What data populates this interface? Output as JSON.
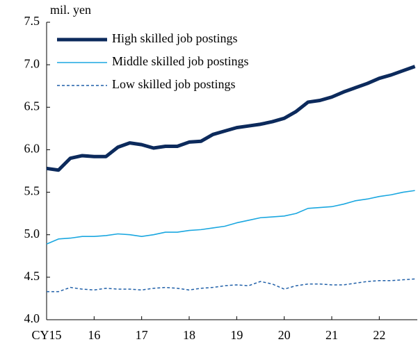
{
  "chart_data": {
    "type": "line",
    "y_label": "mil. yen",
    "legend": "upper left",
    "x": [
      2015,
      2015.25,
      2015.5,
      2015.75,
      2016,
      2016.25,
      2016.5,
      2016.75,
      2017,
      2017.25,
      2017.5,
      2017.75,
      2018,
      2018.25,
      2018.5,
      2018.75,
      2019,
      2019.25,
      2019.5,
      2019.75,
      2020,
      2020.25,
      2020.5,
      2020.75,
      2021,
      2021.25,
      2021.5,
      2021.75,
      2022,
      2022.25,
      2022.5,
      2022.75
    ],
    "series": [
      {
        "name": "High skilled job postings",
        "color": "#0c2a5c",
        "width": 5,
        "dash": "none",
        "values": [
          5.78,
          5.76,
          5.9,
          5.93,
          5.92,
          5.92,
          6.03,
          6.08,
          6.06,
          6.02,
          6.04,
          6.04,
          6.09,
          6.1,
          6.18,
          6.22,
          6.26,
          6.28,
          6.3,
          6.33,
          6.37,
          6.45,
          6.56,
          6.58,
          6.62,
          6.68,
          6.73,
          6.78,
          6.84,
          6.88,
          6.93,
          6.98
        ]
      },
      {
        "name": "Middle skilled job postings",
        "color": "#1aa7e0",
        "width": 1.6,
        "dash": "none",
        "values": [
          4.89,
          4.95,
          4.96,
          4.98,
          4.98,
          4.99,
          5.01,
          5.0,
          4.98,
          5.0,
          5.03,
          5.03,
          5.05,
          5.06,
          5.08,
          5.1,
          5.14,
          5.17,
          5.2,
          5.21,
          5.22,
          5.25,
          5.31,
          5.32,
          5.33,
          5.36,
          5.4,
          5.42,
          5.45,
          5.47,
          5.5,
          5.52
        ]
      },
      {
        "name": "Low skilled job postings",
        "color": "#1f5fa8",
        "width": 1.5,
        "dash": "4 3",
        "values": [
          4.33,
          4.33,
          4.38,
          4.36,
          4.35,
          4.37,
          4.36,
          4.36,
          4.35,
          4.37,
          4.38,
          4.37,
          4.35,
          4.37,
          4.38,
          4.4,
          4.41,
          4.4,
          4.45,
          4.42,
          4.36,
          4.4,
          4.42,
          4.42,
          4.41,
          4.41,
          4.43,
          4.45,
          4.46,
          4.46,
          4.47,
          4.48
        ]
      }
    ],
    "xlim": [
      2015,
      2022.8
    ],
    "xticks": [
      {
        "value": 2015,
        "label": "CY15"
      },
      {
        "value": 2016,
        "label": "16"
      },
      {
        "value": 2017,
        "label": "17"
      },
      {
        "value": 2018,
        "label": "18"
      },
      {
        "value": 2019,
        "label": "19"
      },
      {
        "value": 2020,
        "label": "20"
      },
      {
        "value": 2021,
        "label": "21"
      },
      {
        "value": 2022,
        "label": "22"
      }
    ],
    "ylim": [
      4,
      7.5
    ],
    "yticks": [
      {
        "value": 4,
        "label": "4.0"
      },
      {
        "value": 4.5,
        "label": "4.5"
      },
      {
        "value": 5,
        "label": "5.0"
      },
      {
        "value": 5.5,
        "label": "5.5"
      },
      {
        "value": 6,
        "label": "6.0"
      },
      {
        "value": 6.5,
        "label": "6.5"
      },
      {
        "value": 7,
        "label": "7.0"
      },
      {
        "value": 7.5,
        "label": "7.5"
      }
    ],
    "grid": false
  }
}
